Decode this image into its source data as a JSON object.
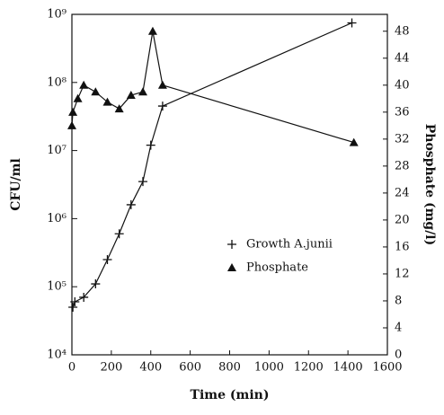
{
  "chart_data": {
    "type": "line",
    "x_label": "Time (min)",
    "y_label": "CFU/ml",
    "y2_label": "Phosphate (mg/l)",
    "xlim": [
      0,
      1600
    ],
    "xticks": [
      0,
      200,
      400,
      600,
      800,
      1000,
      1200,
      1400,
      1600
    ],
    "ylim": [
      10000,
      1000000000
    ],
    "y_scale": "log",
    "yticks": [
      {
        "value": 10000,
        "label": "10⁴"
      },
      {
        "value": 100000,
        "label": "10⁵"
      },
      {
        "value": 1000000,
        "label": "10⁶"
      },
      {
        "value": 10000000,
        "label": "10⁷"
      },
      {
        "value": 100000000,
        "label": "10⁸"
      },
      {
        "value": 1000000000,
        "label": "10⁹"
      }
    ],
    "y2lim": [
      0,
      50.5
    ],
    "y2ticks": [
      0,
      4,
      8,
      12,
      16,
      20,
      24,
      28,
      32,
      36,
      40,
      44,
      48
    ],
    "legend": "center",
    "series": [
      {
        "name": "Growth A.junii",
        "color": "#111111",
        "marker": "plus",
        "axis": "y",
        "x": [
          5,
          15,
          60,
          120,
          180,
          240,
          300,
          360,
          400,
          460,
          1420
        ],
        "values": [
          50000,
          60000,
          70000,
          110000,
          250000,
          600000,
          1600000,
          3500000,
          12000000,
          45000000,
          750000000
        ]
      },
      {
        "name": "Phosphate",
        "color": "#111111",
        "marker": "triangle",
        "axis": "y2",
        "x": [
          0,
          5,
          30,
          60,
          120,
          180,
          240,
          300,
          360,
          410,
          460,
          1430
        ],
        "values": [
          34,
          36,
          38,
          40,
          39,
          37.5,
          36.5,
          38.5,
          39,
          48,
          40,
          31.5
        ]
      }
    ]
  }
}
